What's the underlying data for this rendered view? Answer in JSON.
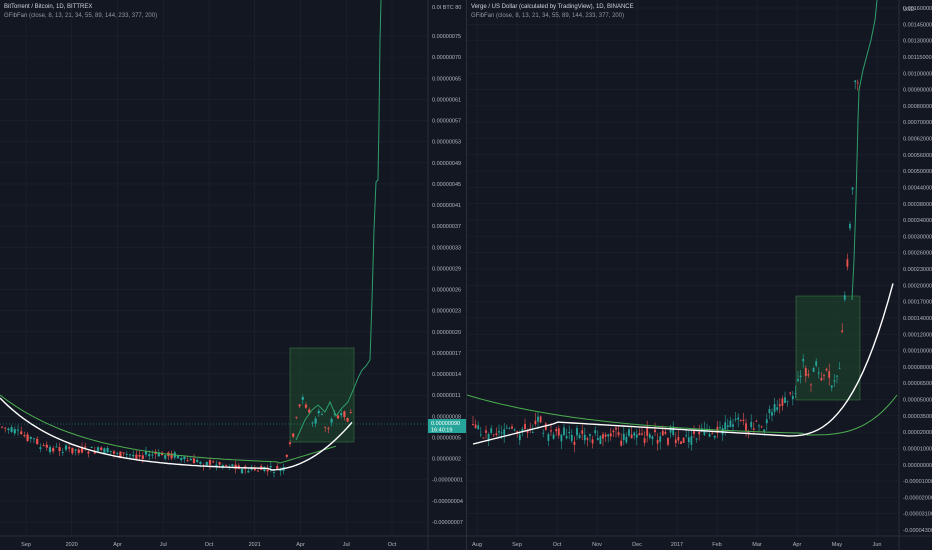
{
  "colors": {
    "background": "#131722",
    "grid": "#1f2330",
    "up": "#26a69a",
    "down": "#ef5350",
    "ma_white": "#ffffff",
    "ma_green": "#4caf50",
    "fib_line": "#2e9e6b",
    "box_fill": "#1f4a30",
    "box_stroke": "#4caf50",
    "price_label": "#26a69a"
  },
  "left_chart": {
    "title": "BitTorrent / Bitcoin, 1D, BITTREX",
    "indicator": "GFibFan (close, 8, 13, 21, 34, 55, 89, 144, 233, 377, 200)",
    "currency_label": "0.0I BTC 80",
    "price_label": "0.00000090",
    "countdown": "16:40:19",
    "y_ticks": [
      "0.00000075",
      "0.00000070",
      "0.00000065",
      "0.00000061",
      "0.00000057",
      "0.00000053",
      "0.00000049",
      "0.00000045",
      "0.00000041",
      "0.00000037",
      "0.00000033",
      "0.00000029",
      "0.00000026",
      "0.00000023",
      "0.00000020",
      "0.00000017",
      "0.00000014",
      "0.00000011",
      "0.00000008",
      "0.00000005",
      "0.00000002",
      "-0.00000001",
      "-0.00000004",
      "-0.00000007"
    ],
    "x_ticks": [
      "Sep",
      "2020",
      "Apr",
      "Jul",
      "Oct",
      "2021",
      "Apr",
      "Jul",
      "Oct"
    ],
    "chart_data": {
      "type": "candlestick",
      "x_range": [
        "2019-08",
        "2021-11"
      ],
      "y_range": [
        -8e-08,
        8e-07
      ],
      "notes": "Price drifts from ~0.00000012 in mid-2019 down to ~0.00000002 by early 2021, spikes to ~0.00000020 in Apr 2021, consolidates near 0.00000010, then the fib fan line shoots above 0.00000080 by Sep 2021."
    }
  },
  "right_chart": {
    "title": "Verge / US Dollar (calculated by TradingView), 1D, BINANCE",
    "indicator": "GFibFan (close, 8, 13, 21, 34, 55, 89, 144, 233, 377, 200)",
    "currency_label": "USD",
    "y_ticks": [
      "0.00160000",
      "0.00145000",
      "0.00130000",
      "0.00115000",
      "0.00100000",
      "0.00090000",
      "0.00080000",
      "0.00070000",
      "0.00062000",
      "0.00056000",
      "0.00050000",
      "0.00044000",
      "0.00038000",
      "0.00034000",
      "0.00030000",
      "0.00026000",
      "0.00023000",
      "0.00020000",
      "0.00017000",
      "0.00014000",
      "0.00012000",
      "0.00010000",
      "0.00008000",
      "0.00006500",
      "0.00005000",
      "0.00003500",
      "0.00002000",
      "0.00001000",
      "0.00000000",
      "-0.00001000",
      "-0.00002000",
      "-0.00003100",
      "-0.00004300"
    ],
    "x_ticks": [
      "Aug",
      "Sep",
      "Oct",
      "Nov",
      "Dec",
      "2017",
      "Feb",
      "Mar",
      "Apr",
      "May",
      "Jun"
    ],
    "chart_data": {
      "type": "candlestick",
      "x_range": [
        "2016-08",
        "2017-06"
      ],
      "y_scale": "log-like",
      "notes": "Price hovers around 0.00002 from Aug 2016 through Mar 2017, rises sharply in Apr-May 2017 to ~0.00017, then explodes to above 0.00160 in late May 2017."
    }
  }
}
